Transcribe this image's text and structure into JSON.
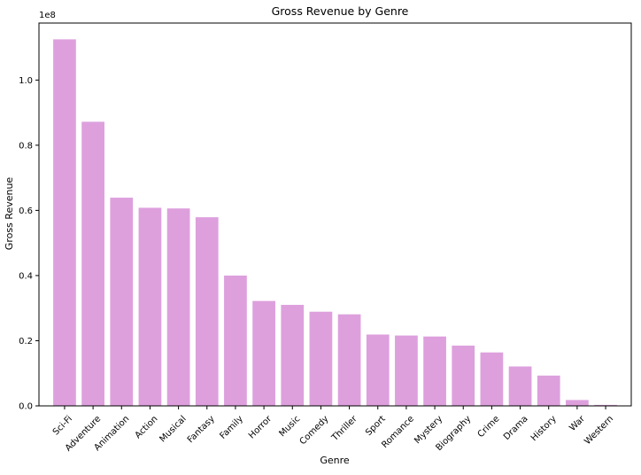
{
  "chart_data": {
    "type": "bar",
    "title": "Gross Revenue by Genre",
    "xlabel": "Genre",
    "ylabel": "Gross Revenue",
    "offset_label": "1e8",
    "categories": [
      "Sci-Fi",
      "Adventure",
      "Animation",
      "Action",
      "Musical",
      "Fantasy",
      "Family",
      "Horror",
      "Music",
      "Comedy",
      "Thriller",
      "Sport",
      "Romance",
      "Mystery",
      "Biography",
      "Crime",
      "Drama",
      "History",
      "War",
      "Western"
    ],
    "values": [
      112500000,
      87200000,
      63900000,
      60800000,
      60600000,
      57900000,
      40000000,
      32200000,
      31000000,
      28900000,
      28100000,
      21900000,
      21600000,
      21300000,
      18500000,
      16400000,
      12100000,
      9300000,
      1800000,
      300000
    ],
    "ylim": [
      0,
      117500000
    ],
    "yticks": [
      0,
      20000000,
      40000000,
      60000000,
      80000000,
      100000000
    ],
    "ytick_labels": [
      "0.0",
      "0.2",
      "0.4",
      "0.6",
      "0.8",
      "1.0"
    ],
    "bar_color": "#dda0dd",
    "grid": false
  }
}
